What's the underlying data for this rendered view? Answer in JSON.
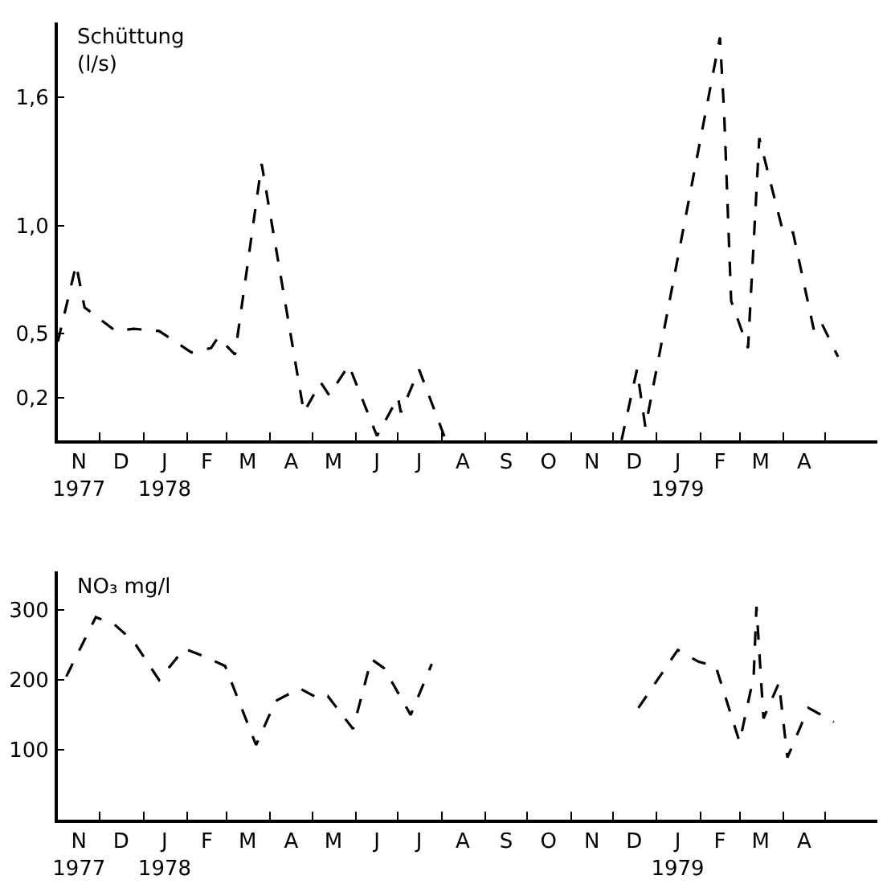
{
  "chart_data": [
    {
      "type": "line",
      "ylabel": "Schüttung\n(l/s)",
      "xlim": [
        "1977-11-01",
        "1979-06-07"
      ],
      "ylim": [
        0,
        1.95
      ],
      "yticks": [
        {
          "value": 0.2,
          "label": "0,2"
        },
        {
          "value": 0.5,
          "label": "0,5"
        },
        {
          "value": 1.0,
          "label": "1,0"
        },
        {
          "value": 1.6,
          "label": "1,6"
        }
      ],
      "xticks": [
        {
          "value": "1977-11-16",
          "label": "N\n1977"
        },
        {
          "value": "1977-12-16",
          "label": "D"
        },
        {
          "value": "1978-01-16",
          "label": "J\n1978"
        },
        {
          "value": "1978-02-15",
          "label": "F"
        },
        {
          "value": "1978-03-16",
          "label": "M"
        },
        {
          "value": "1978-04-16",
          "label": "A"
        },
        {
          "value": "1978-05-16",
          "label": "M"
        },
        {
          "value": "1978-06-16",
          "label": "J"
        },
        {
          "value": "1978-07-16",
          "label": "J"
        },
        {
          "value": "1978-08-16",
          "label": "A"
        },
        {
          "value": "1978-09-16",
          "label": "S"
        },
        {
          "value": "1978-10-16",
          "label": "O"
        },
        {
          "value": "1978-11-16",
          "label": "N"
        },
        {
          "value": "1978-12-16",
          "label": "D"
        },
        {
          "value": "1979-01-16",
          "label": "J\n1979"
        },
        {
          "value": "1979-02-15",
          "label": "F"
        },
        {
          "value": "1979-03-16",
          "label": "M"
        },
        {
          "value": "1979-04-16",
          "label": "A"
        },
        {
          "value": "1977-12-01",
          "label": null
        },
        {
          "value": "1978-01-01",
          "label": null
        },
        {
          "value": "1978-02-01",
          "label": null
        },
        {
          "value": "1978-03-01",
          "label": null
        },
        {
          "value": "1978-04-01",
          "label": null
        },
        {
          "value": "1978-05-01",
          "label": null
        },
        {
          "value": "1978-06-01",
          "label": null
        },
        {
          "value": "1978-07-01",
          "label": null
        },
        {
          "value": "1978-08-01",
          "label": null
        },
        {
          "value": "1978-09-01",
          "label": null
        },
        {
          "value": "1978-10-01",
          "label": null
        },
        {
          "value": "1978-11-01",
          "label": null
        },
        {
          "value": "1978-12-01",
          "label": null
        },
        {
          "value": "1979-01-01",
          "label": null
        },
        {
          "value": "1979-02-01",
          "label": null
        },
        {
          "value": "1979-03-01",
          "label": null
        },
        {
          "value": "1979-04-01",
          "label": null
        },
        {
          "value": "1979-05-01",
          "label": null
        }
      ],
      "marker": "none",
      "line_style": "dashed",
      "series": [
        {
          "color": "#000000",
          "x": [
            "1977-11-01",
            "1977-11-14",
            "1977-11-20",
            "1977-12-12",
            "1977-12-25",
            "1978-01-12",
            "1978-02-04",
            "1978-02-18",
            "1978-02-23",
            "1978-03-07",
            "1978-03-26",
            "1978-04-25",
            "1978-05-07",
            "1978-05-13",
            "1978-05-27",
            "1978-06-16",
            "1978-07-01",
            "1978-07-03",
            "1978-07-16",
            "1978-08-04",
            "1978-10-01",
            "1978-12-07",
            "1978-12-18",
            "1978-12-24",
            "1979-02-15",
            "1979-02-18",
            "1979-02-23",
            "1979-03-07",
            "1979-03-15",
            "1979-04-01",
            "1979-04-08",
            "1979-04-23",
            "1979-04-28",
            "1979-05-10"
          ],
          "values": [
            0.46,
            0.82,
            0.62,
            0.51,
            0.52,
            0.51,
            0.41,
            0.43,
            0.48,
            0.4,
            1.29,
            0.13,
            0.27,
            0.21,
            0.35,
            0.02,
            0.2,
            0.13,
            0.33,
            0.0,
            null,
            0.0,
            0.33,
            0.06,
            1.88,
            1.53,
            0.65,
            0.43,
            1.41,
            0.97,
            0.97,
            0.51,
            0.55,
            0.39
          ]
        }
      ]
    },
    {
      "type": "line",
      "ylabel": "NO₃ mg/l",
      "xlim": [
        "1977-11-01",
        "1979-06-07"
      ],
      "ylim": [
        0,
        355
      ],
      "yticks": [
        100,
        200,
        300
      ],
      "xticks": [
        {
          "value": "1977-11-16",
          "label": "N\n1977"
        },
        {
          "value": "1977-12-16",
          "label": "D"
        },
        {
          "value": "1978-01-16",
          "label": "J\n1978"
        },
        {
          "value": "1978-02-15",
          "label": "F"
        },
        {
          "value": "1978-03-16",
          "label": "M"
        },
        {
          "value": "1978-04-16",
          "label": "A"
        },
        {
          "value": "1978-05-16",
          "label": "M"
        },
        {
          "value": "1978-06-16",
          "label": "J"
        },
        {
          "value": "1978-07-16",
          "label": "J"
        },
        {
          "value": "1978-08-16",
          "label": "A"
        },
        {
          "value": "1978-09-16",
          "label": "S"
        },
        {
          "value": "1978-10-16",
          "label": "O"
        },
        {
          "value": "1978-11-16",
          "label": "N"
        },
        {
          "value": "1978-12-16",
          "label": "D"
        },
        {
          "value": "1979-01-16",
          "label": "J\n1979"
        },
        {
          "value": "1979-02-15",
          "label": "F"
        },
        {
          "value": "1979-03-16",
          "label": "M"
        },
        {
          "value": "1979-04-16",
          "label": "A"
        },
        {
          "value": "1977-12-01",
          "label": null
        },
        {
          "value": "1978-01-01",
          "label": null
        },
        {
          "value": "1978-02-01",
          "label": null
        },
        {
          "value": "1978-03-01",
          "label": null
        },
        {
          "value": "1978-04-01",
          "label": null
        },
        {
          "value": "1978-05-01",
          "label": null
        },
        {
          "value": "1978-06-01",
          "label": null
        },
        {
          "value": "1978-07-01",
          "label": null
        },
        {
          "value": "1978-08-01",
          "label": null
        },
        {
          "value": "1978-09-01",
          "label": null
        },
        {
          "value": "1978-10-01",
          "label": null
        },
        {
          "value": "1978-11-01",
          "label": null
        },
        {
          "value": "1978-12-01",
          "label": null
        },
        {
          "value": "1979-01-01",
          "label": null
        },
        {
          "value": "1979-02-01",
          "label": null
        },
        {
          "value": "1979-03-01",
          "label": null
        },
        {
          "value": "1979-04-01",
          "label": null
        },
        {
          "value": "1979-05-01",
          "label": null
        }
      ],
      "marker": "none",
      "line_style": "dashed",
      "series": [
        {
          "color": "#000000",
          "x": [
            "1977-11-07",
            "1977-11-28",
            "1977-12-11",
            "1977-12-25",
            "1978-01-12",
            "1978-01-30",
            "1978-02-14",
            "1978-02-28",
            "1978-03-22",
            "1978-04-05",
            "1978-04-22",
            "1978-05-06",
            "1978-05-12",
            "1978-05-30",
            "1978-06-12",
            "1978-06-21",
            "1978-07-10",
            "1978-07-25",
            "1978-10-01",
            "1978-12-19",
            "1979-01-16",
            "1979-01-31",
            "1979-02-12",
            "1979-03-01",
            "1979-03-11",
            "1979-03-13",
            "1979-03-18",
            "1979-03-29",
            "1979-04-04",
            "1979-04-19",
            "1979-05-07"
          ],
          "values": [
            205,
            290,
            280,
            255,
            200,
            245,
            233,
            220,
            107,
            170,
            188,
            173,
            177,
            130,
            230,
            217,
            150,
            223,
            null,
            160,
            243,
            226,
            220,
            111,
            205,
            305,
            145,
            196,
            89,
            160,
            140
          ]
        }
      ]
    }
  ]
}
